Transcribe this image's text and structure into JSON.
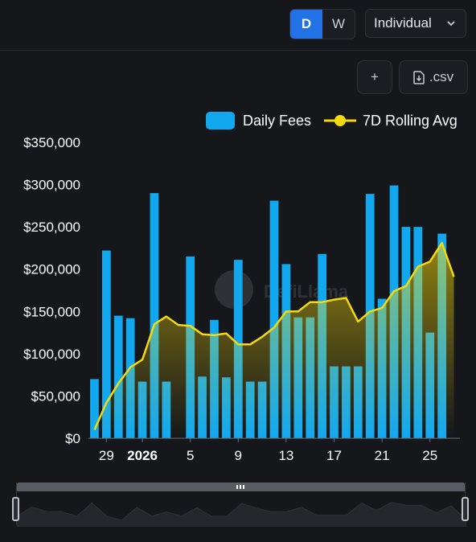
{
  "toolbar": {
    "period_buttons": [
      {
        "label": "D",
        "active": true
      },
      {
        "label": "W",
        "active": false
      }
    ],
    "mode_select": {
      "value": "Individual",
      "icon": "chevron-down-icon"
    },
    "add_button": {
      "label": "+",
      "icon": "plus-icon"
    },
    "csv_button": {
      "label": ".csv",
      "icon": "download-file-icon"
    }
  },
  "watermark": "DefiLlama",
  "colors": {
    "bar": "#12a8f0",
    "line": "#f5d90a",
    "background": "#16171b",
    "active_button": "#2172e5"
  },
  "chart_data": {
    "type": "bar",
    "legend": [
      "Daily Fees",
      "7D Rolling Avg"
    ],
    "legend_position": "top-right",
    "x_tick_labels": [
      "29",
      "2026",
      "5",
      "9",
      "13",
      "17",
      "21",
      "25"
    ],
    "y_tick_labels": [
      "$0",
      "$50,000",
      "$100,000",
      "$150,000",
      "$200,000",
      "$250,000",
      "$300,000",
      "$350,000"
    ],
    "ylim": [
      0,
      350000
    ],
    "grid": false,
    "x": [
      "Dec 28",
      "Dec 29",
      "Dec 30",
      "Dec 31",
      "Jan 1",
      "Jan 2",
      "Jan 3",
      "Jan 4",
      "Jan 5",
      "Jan 6",
      "Jan 7",
      "Jan 8",
      "Jan 9",
      "Jan 10",
      "Jan 11",
      "Jan 12",
      "Jan 13",
      "Jan 14",
      "Jan 15",
      "Jan 16",
      "Jan 17",
      "Jan 18",
      "Jan 19",
      "Jan 20",
      "Jan 21",
      "Jan 22",
      "Jan 23",
      "Jan 24",
      "Jan 25",
      "Jan 26",
      "Jan 27"
    ],
    "series": [
      {
        "name": "Daily Fees",
        "type": "bar",
        "values": [
          70000,
          222000,
          145000,
          142000,
          67000,
          290000,
          67000,
          0,
          215000,
          73000,
          140000,
          72000,
          211000,
          67000,
          67000,
          281000,
          206000,
          143000,
          143000,
          218000,
          85000,
          85000,
          85000,
          289000,
          165000,
          299000,
          250000,
          250000,
          125000,
          242000,
          0
        ]
      },
      {
        "name": "7D Rolling Avg",
        "type": "line",
        "values": [
          10000,
          42000,
          65000,
          84000,
          93000,
          135000,
          144000,
          134000,
          133000,
          123000,
          122000,
          124000,
          111000,
          111000,
          120000,
          131000,
          150000,
          150000,
          161000,
          161000,
          164000,
          166000,
          138000,
          150000,
          154000,
          174000,
          180000,
          203000,
          209000,
          231000,
          191000
        ]
      }
    ]
  }
}
